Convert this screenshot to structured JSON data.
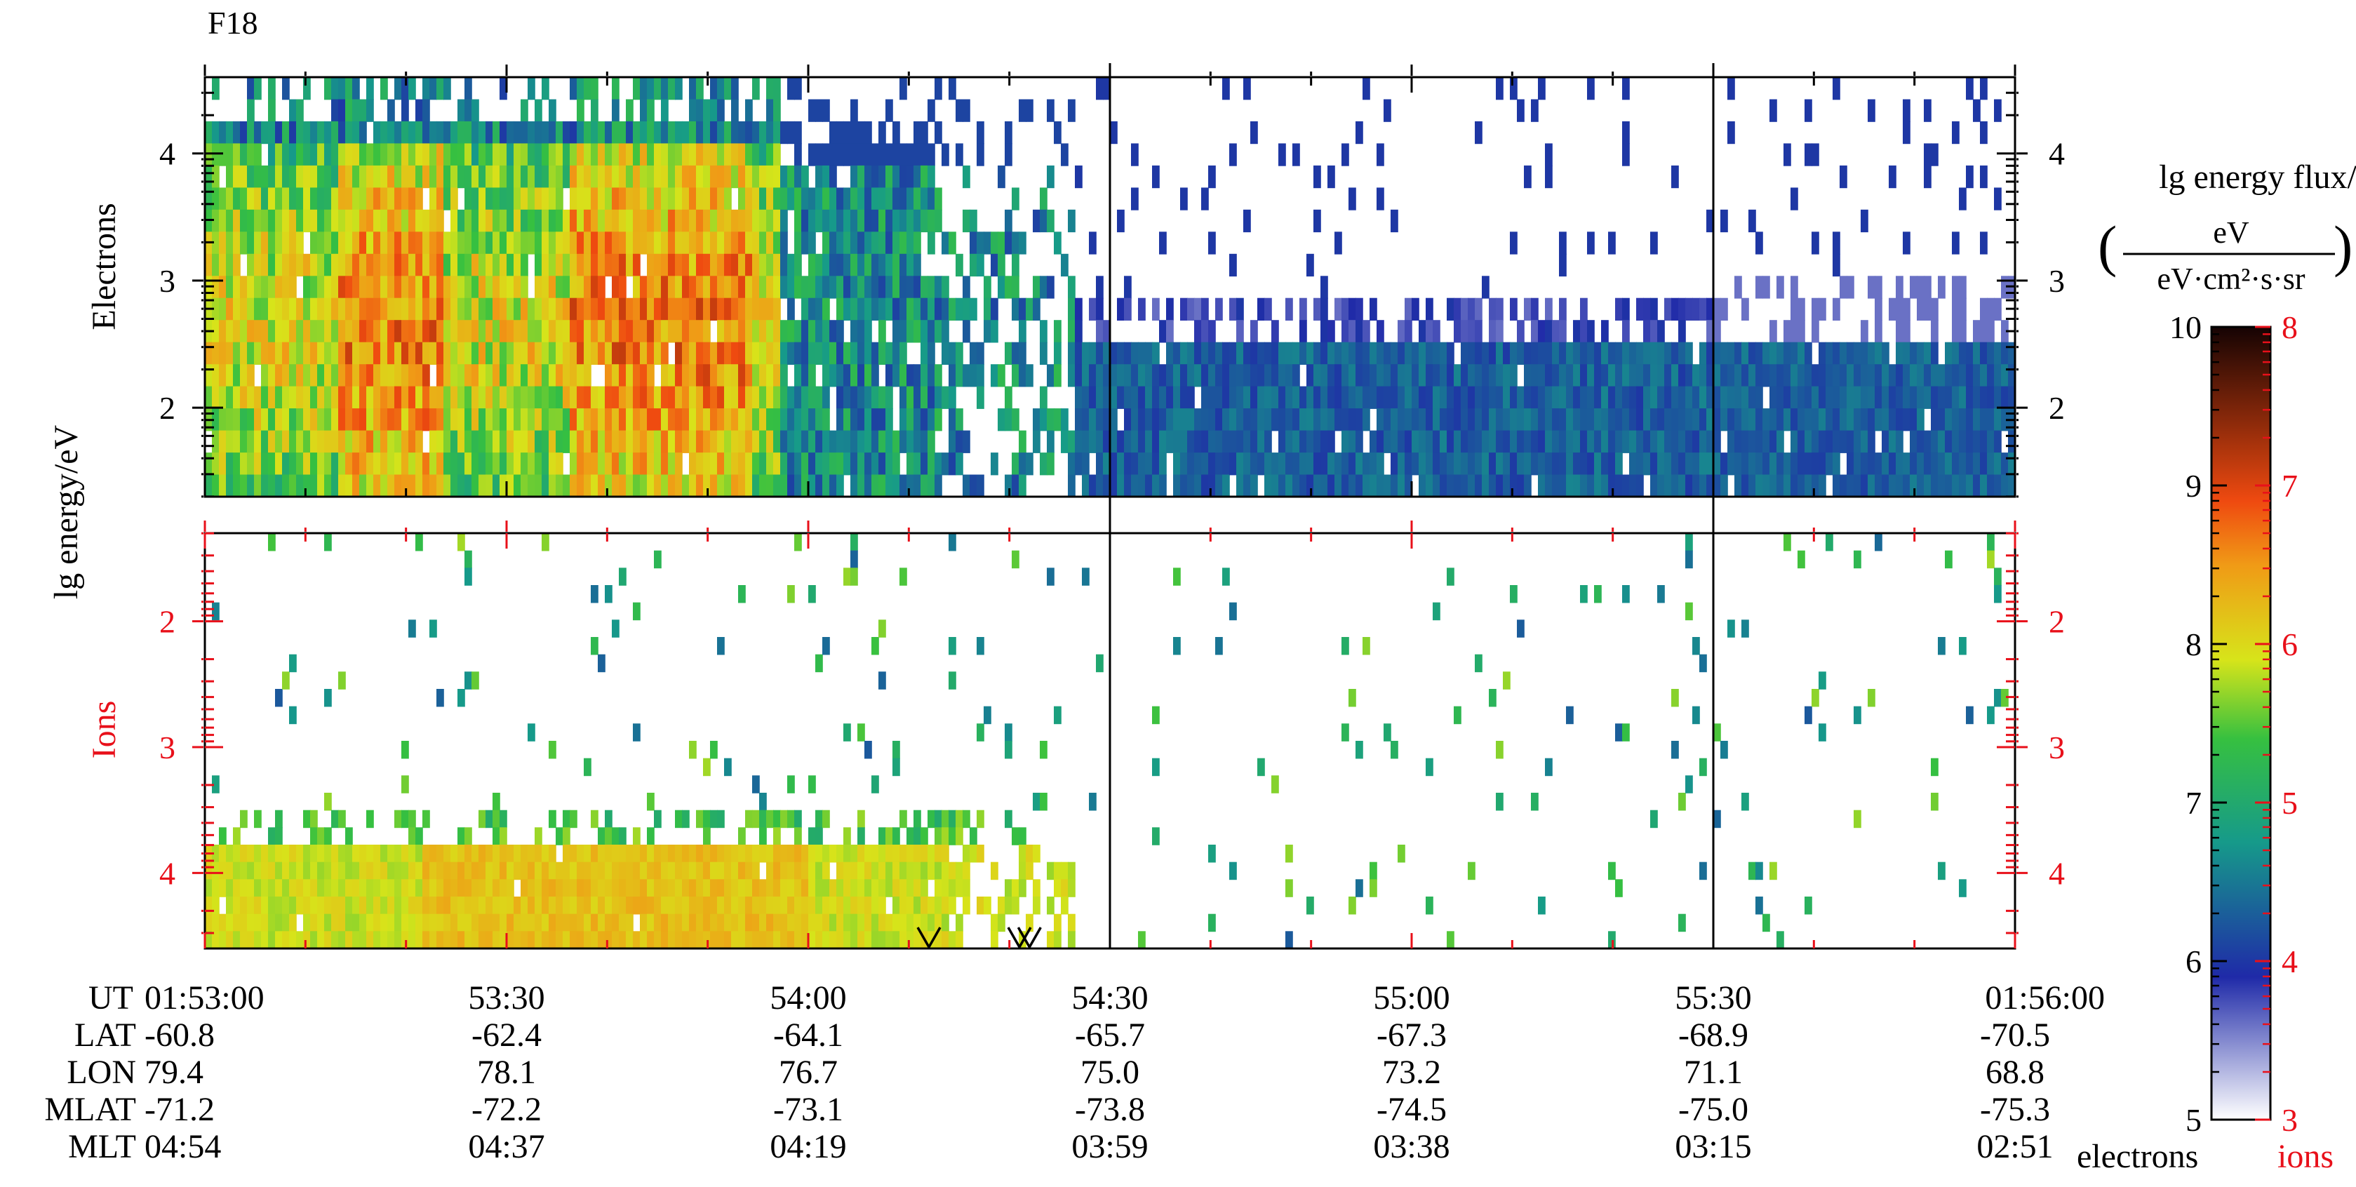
{
  "title": "F18",
  "chart_data": [
    {
      "panel": "electrons",
      "type": "heatmap",
      "ylabel": "Electrons",
      "shared_ylabel": "lg energy/eV",
      "ylim": [
        1.3,
        4.6
      ],
      "yticks": [
        "2",
        "3",
        "4"
      ],
      "y_axis_inverted": false
    },
    {
      "panel": "ions",
      "type": "heatmap",
      "ylabel": "Ions",
      "ylim": [
        1.3,
        4.6
      ],
      "yticks": [
        "2",
        "3",
        "4"
      ],
      "y_axis_inverted": true,
      "markers": [
        {
          "symbol": "V",
          "time": "01:54:12"
        },
        {
          "symbol": "V",
          "time": "01:54:21"
        },
        {
          "symbol": "V",
          "time": "01:54:22"
        }
      ]
    }
  ],
  "x_axis": {
    "row_labels": [
      "UT",
      "LAT",
      "LON",
      "MLAT",
      "MLT"
    ],
    "columns": [
      {
        "UT": "01:53:00",
        "LAT": "-60.8",
        "LON": "79.4",
        "MLAT": "-71.2",
        "MLT": "04:54"
      },
      {
        "UT": "53:30",
        "LAT": "-62.4",
        "LON": "78.1",
        "MLAT": "-72.2",
        "MLT": "04:37"
      },
      {
        "UT": "54:00",
        "LAT": "-64.1",
        "LON": "76.7",
        "MLAT": "-73.1",
        "MLT": "04:19"
      },
      {
        "UT": "54:30",
        "LAT": "-65.7",
        "LON": "75.0",
        "MLAT": "-73.8",
        "MLT": "03:59"
      },
      {
        "UT": "55:00",
        "LAT": "-67.3",
        "LON": "73.2",
        "MLAT": "-74.5",
        "MLT": "03:38"
      },
      {
        "UT": "55:30",
        "LAT": "-68.9",
        "LON": "71.1",
        "MLAT": "-75.0",
        "MLT": "03:15"
      },
      {
        "UT": "01:56:00",
        "LAT": "-70.5",
        "LON": "68.8",
        "MLAT": "-75.3",
        "MLT": "02:51"
      }
    ],
    "vertical_lines_at": [
      "54:30",
      "55:30"
    ]
  },
  "colorbar": {
    "title_line1": "lg energy flux/",
    "unit_numerator": "eV",
    "unit_denominator": "eV·cm²·s·sr",
    "electron_ticks": [
      "5",
      "6",
      "7",
      "8",
      "9",
      "10"
    ],
    "ion_ticks": [
      "3",
      "4",
      "5",
      "6",
      "7",
      "8"
    ],
    "electrons_label": "electrons",
    "ions_label": "ions",
    "ion_color": "#e8101a",
    "stops": [
      "#ffffff",
      "#1f2aa8",
      "#169a8a",
      "#36c040",
      "#d7e41a",
      "#f09a16",
      "#ef4a10",
      "#150303"
    ]
  }
}
